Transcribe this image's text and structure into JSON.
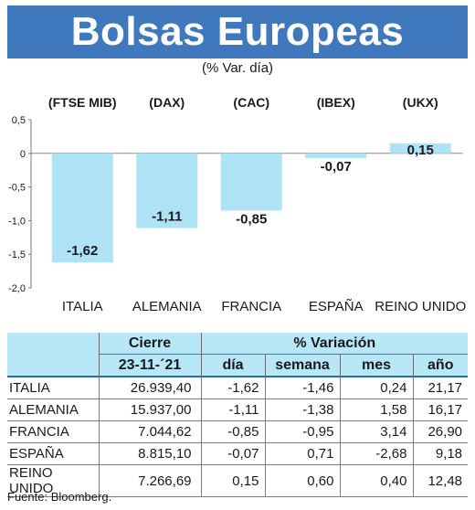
{
  "header": {
    "title": "Bolsas Europeas",
    "subtitle": "(% Var. día)"
  },
  "colors": {
    "header_bg": "#3f78bd",
    "bar_fill": "#aee3f5",
    "table_header_bg": "#b8e7f7",
    "rule": "#2c6aa9"
  },
  "chart_data": {
    "type": "bar",
    "categories": [
      "ITALIA",
      "ALEMANIA",
      "FRANCIA",
      "ESPAÑA",
      "REINO UNIDO"
    ],
    "index_labels": [
      "(FTSE MIB)",
      "(DAX)",
      "(CAC)",
      "(IBEX)",
      "(UKX)"
    ],
    "values": [
      -1.62,
      -1.11,
      -0.85,
      -0.07,
      0.15
    ],
    "value_labels": [
      "-1,62",
      "-1,11",
      "-0,85",
      "-0,07",
      "0,15"
    ],
    "ylim": [
      -2.0,
      0.5
    ],
    "yticks": [
      0.5,
      0,
      -0.5,
      -1.0,
      -1.5,
      -2.0
    ],
    "ytick_labels": [
      "0,5",
      "0",
      "-0,5",
      "-1,0",
      "-1,5",
      "-2,0"
    ],
    "grid": false
  },
  "table": {
    "group_headers": {
      "cierre": "Cierre",
      "variacion": "% Variación"
    },
    "date": "23-11-´21",
    "columns": [
      "día",
      "semana",
      "mes",
      "año"
    ],
    "rows": [
      {
        "name": "ITALIA",
        "cierre": "26.939,40",
        "dia": "-1,62",
        "semana": "-1,46",
        "mes": "0,24",
        "ano": "21,17"
      },
      {
        "name": "ALEMANIA",
        "cierre": "15.937,00",
        "dia": "-1,11",
        "semana": "-1,38",
        "mes": "1,58",
        "ano": "16,17"
      },
      {
        "name": "FRANCIA",
        "cierre": "7.044,62",
        "dia": "-0,85",
        "semana": "-0,95",
        "mes": "3,14",
        "ano": "26,90"
      },
      {
        "name": "ESPAÑA",
        "cierre": "8.815,10",
        "dia": "-0,07",
        "semana": "0,71",
        "mes": "-2,68",
        "ano": "9,18"
      },
      {
        "name": "REINO UNIDO",
        "cierre": "7.266,69",
        "dia": "0,15",
        "semana": "0,60",
        "mes": "0,40",
        "ano": "12,48"
      }
    ]
  },
  "source": "Fuente: Bloomberg."
}
